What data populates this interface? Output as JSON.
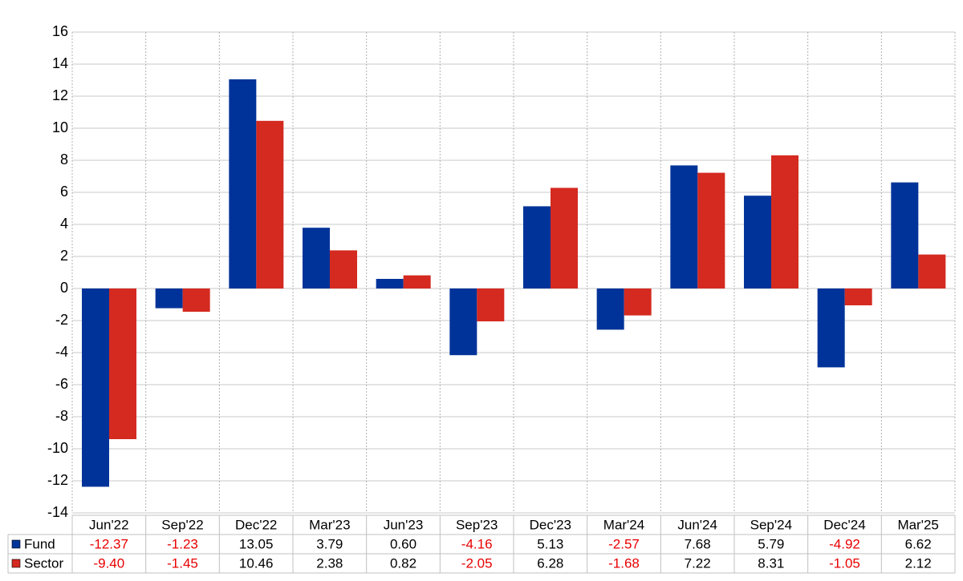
{
  "chart_data": {
    "type": "bar",
    "categories": [
      "Jun'22",
      "Sep'22",
      "Dec'22",
      "Mar'23",
      "Jun'23",
      "Sep'23",
      "Dec'23",
      "Mar'24",
      "Jun'24",
      "Sep'24",
      "Dec'24",
      "Mar'25"
    ],
    "series": [
      {
        "name": "Fund",
        "color": "#003399",
        "values": [
          -12.37,
          -1.23,
          13.05,
          3.79,
          0.6,
          -4.16,
          5.13,
          -2.57,
          7.68,
          5.79,
          -4.92,
          6.62
        ],
        "value_labels": [
          "-12.37",
          "-1.23",
          "13.05",
          "3.79",
          "0.60",
          "-4.16",
          "5.13",
          "-2.57",
          "7.68",
          "5.79",
          "-4.92",
          "6.62"
        ]
      },
      {
        "name": "Sector",
        "color": "#d42a20",
        "values": [
          -9.4,
          -1.45,
          10.46,
          2.38,
          0.82,
          -2.05,
          6.28,
          -1.68,
          7.22,
          8.31,
          -1.05,
          2.12
        ],
        "value_labels": [
          "-9.40",
          "-1.45",
          "10.46",
          "2.38",
          "0.82",
          "-2.05",
          "6.28",
          "-1.68",
          "7.22",
          "8.31",
          "-1.05",
          "2.12"
        ]
      }
    ],
    "ylim": [
      -14,
      16
    ],
    "yticks": [
      -14,
      -12,
      -10,
      -8,
      -6,
      -4,
      -2,
      0,
      2,
      4,
      6,
      8,
      10,
      12,
      14,
      16
    ],
    "grid": true
  }
}
